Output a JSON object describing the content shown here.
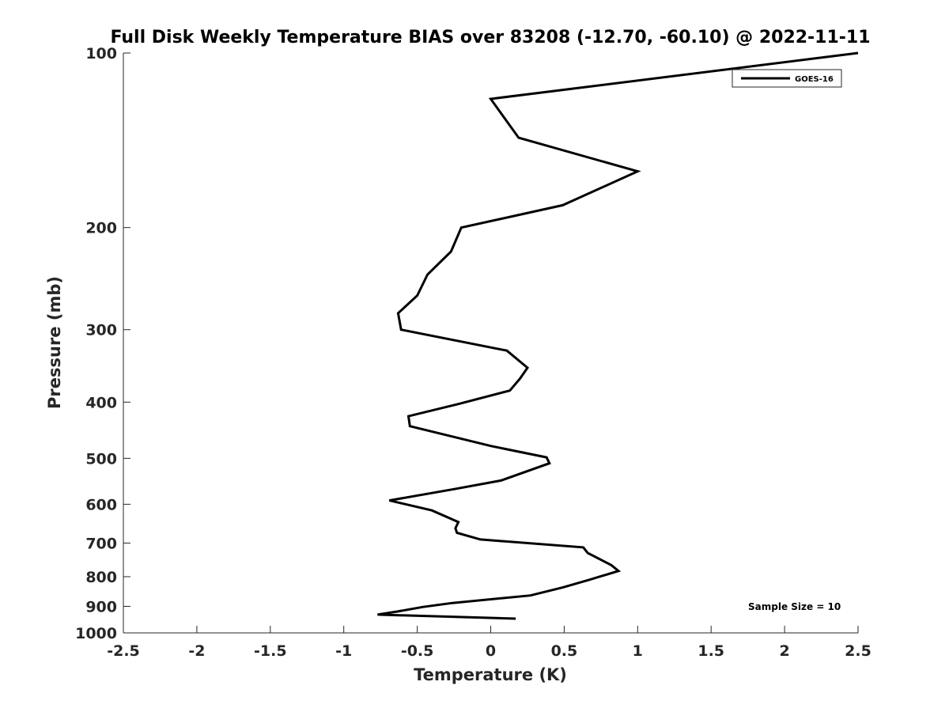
{
  "chart_data": {
    "type": "line",
    "title": "Full Disk Weekly Temperature BIAS over 83208 (-12.70, -60.10) @ 2022-11-11",
    "xlabel": "Temperature (K)",
    "ylabel": "Pressure (mb)",
    "xlim": [
      -2.5,
      2.5
    ],
    "ylim": [
      100,
      1000
    ],
    "y_scale": "log",
    "y_reversed": true,
    "x_ticks": [
      "-2.5",
      "-2",
      "-1.5",
      "-1",
      "-0.5",
      "0",
      "0.5",
      "1",
      "1.5",
      "2",
      "2.5"
    ],
    "y_ticks": [
      "100",
      "200",
      "300",
      "400",
      "500",
      "600",
      "700",
      "800",
      "900",
      "1000"
    ],
    "grid": false,
    "legend_position": "top-right",
    "series": [
      {
        "name": "GOES-16",
        "color": "#000000",
        "points": [
          [
            2.5,
            100
          ],
          [
            0.0,
            120
          ],
          [
            0.19,
            140
          ],
          [
            1.0,
            160
          ],
          [
            0.49,
            183
          ],
          [
            -0.2,
            200
          ],
          [
            -0.27,
            220
          ],
          [
            -0.43,
            241
          ],
          [
            -0.5,
            262
          ],
          [
            -0.63,
            281
          ],
          [
            -0.61,
            300
          ],
          [
            0.11,
            326
          ],
          [
            0.25,
            349
          ],
          [
            0.2,
            364
          ],
          [
            0.13,
            382
          ],
          [
            -0.22,
            403
          ],
          [
            -0.56,
            423
          ],
          [
            -0.55,
            440
          ],
          [
            0.0,
            476
          ],
          [
            0.38,
            498
          ],
          [
            0.4,
            510
          ],
          [
            0.07,
            546
          ],
          [
            -0.25,
            565
          ],
          [
            -0.69,
            591
          ],
          [
            -0.4,
            615
          ],
          [
            -0.22,
            644
          ],
          [
            -0.24,
            660
          ],
          [
            -0.23,
            672
          ],
          [
            -0.07,
            690
          ],
          [
            0.63,
            712
          ],
          [
            0.66,
            728
          ],
          [
            0.82,
            764
          ],
          [
            0.87,
            782
          ],
          [
            0.67,
            810
          ],
          [
            0.49,
            835
          ],
          [
            0.27,
            862
          ],
          [
            -0.26,
            888
          ],
          [
            -0.46,
            902
          ],
          [
            -0.64,
            919
          ],
          [
            -0.77,
            930
          ],
          [
            0.17,
            945
          ]
        ]
      }
    ],
    "annotation": "Sample Size = 10"
  }
}
